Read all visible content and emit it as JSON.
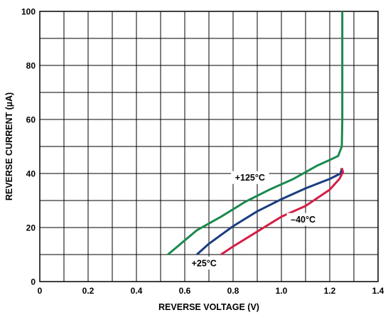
{
  "chart_data": {
    "type": "line",
    "title": "",
    "xlabel": "REVERSE VOLTAGE (V)",
    "ylabel": "REVERSE CURRENT (µA)",
    "xlim": [
      0,
      1.4
    ],
    "ylim": [
      0,
      100
    ],
    "x_ticks": [
      0,
      0.2,
      0.4,
      0.6,
      0.8,
      1.0,
      1.2,
      1.4
    ],
    "x_tick_labels": [
      "0",
      "0.2",
      "0.4",
      "0.6",
      "0.8",
      "1.0",
      "1.2",
      "1.4"
    ],
    "y_ticks": [
      0,
      20,
      40,
      60,
      80,
      100
    ],
    "y_tick_labels": [
      "0",
      "20",
      "40",
      "60",
      "80",
      "100"
    ],
    "grid": true,
    "series": [
      {
        "name": "+125°C",
        "color": "#1a8a4e",
        "points": [
          [
            0.53,
            10
          ],
          [
            0.57,
            13
          ],
          [
            0.65,
            19
          ],
          [
            0.75,
            24
          ],
          [
            0.85,
            29.5
          ],
          [
            0.95,
            34
          ],
          [
            1.05,
            38
          ],
          [
            1.15,
            43
          ],
          [
            1.2,
            45
          ],
          [
            1.235,
            46.5
          ],
          [
            1.25,
            50
          ],
          [
            1.252,
            60
          ],
          [
            1.252,
            80
          ],
          [
            1.252,
            100
          ]
        ]
      },
      {
        "name": "+25°C",
        "color": "#1a3d80",
        "points": [
          [
            0.65,
            10
          ],
          [
            0.7,
            14
          ],
          [
            0.8,
            20.5
          ],
          [
            0.9,
            26
          ],
          [
            1.0,
            30.5
          ],
          [
            1.1,
            34.5
          ],
          [
            1.2,
            38
          ],
          [
            1.245,
            40
          ],
          [
            1.25,
            42
          ]
        ]
      },
      {
        "name": "–40°C",
        "color": "#d41e45",
        "points": [
          [
            0.75,
            10
          ],
          [
            0.8,
            13
          ],
          [
            0.9,
            18.5
          ],
          [
            1.0,
            24
          ],
          [
            1.1,
            28
          ],
          [
            1.2,
            34
          ],
          [
            1.24,
            38
          ],
          [
            1.255,
            40.5
          ],
          [
            1.25,
            42
          ]
        ]
      }
    ],
    "annotations": [
      {
        "text": "+125°C",
        "series": "+125°C",
        "x": 0.87,
        "y": 38.5
      },
      {
        "text": "+25°C",
        "series": "+25°C",
        "x": 0.68,
        "y": 6.8
      },
      {
        "text": "–40°C",
        "series": "–40°C",
        "x": 1.09,
        "y": 23
      }
    ]
  }
}
